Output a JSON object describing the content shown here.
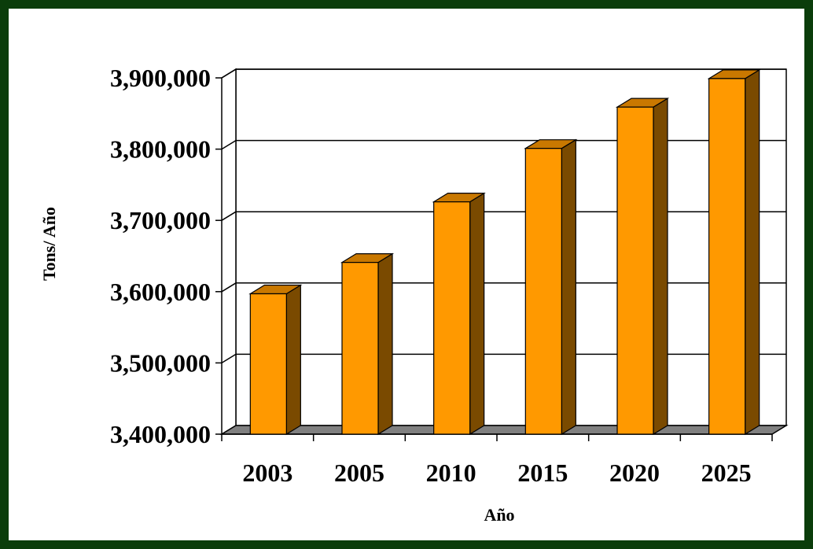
{
  "chart_data": {
    "type": "bar",
    "title": "",
    "xlabel": "Año",
    "ylabel": "Tons/ Año",
    "categories": [
      "2003",
      "2005",
      "2010",
      "2015",
      "2020",
      "2025"
    ],
    "values": [
      3597000,
      3641000,
      3726000,
      3801000,
      3859000,
      3899000
    ],
    "ylim": [
      3400000,
      3900000
    ],
    "yticks": [
      "3,400,000",
      "3,500,000",
      "3,600,000",
      "3,700,000",
      "3,800,000",
      "3,900,000"
    ],
    "grid": true,
    "legend": "none",
    "style": "3d-columns",
    "colors": {
      "bar_front": "#ff9900",
      "bar_side": "#7a4a00",
      "bar_top": "#c97800",
      "floor": "#808080",
      "frame_border": "#0b3d0b"
    }
  }
}
